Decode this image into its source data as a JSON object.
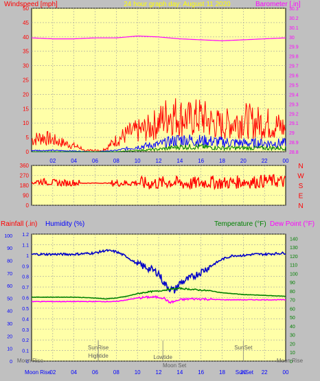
{
  "header": {
    "left_title": "Windspeed [mph]",
    "center_title": "24 hour graph day:  August 11 2020",
    "right_title": "Barometer [.in]"
  },
  "colors": {
    "bg": "#c0c0c0",
    "panel": "#ffffa8",
    "grid": "#a0a0a0",
    "wind": "#ff0000",
    "gust_blue": "#0000ff",
    "gust_green": "#008000",
    "barometer": "#ff00ff",
    "humidity": "#0000c8",
    "temperature": "#008000",
    "dewpoint": "#ff00ff",
    "axis_text_red": "#ff0000",
    "axis_text_blue": "#0000ff",
    "axis_text_green": "#008000",
    "title_yellow": "#ffff00"
  },
  "x_ticks": [
    "02",
    "04",
    "06",
    "08",
    "10",
    "12",
    "14",
    "16",
    "18",
    "20",
    "22",
    "00"
  ],
  "direction_labels": [
    "N",
    "W",
    "S",
    "E",
    "N"
  ],
  "lower_panel_header": {
    "rainfall": "Rainfall (.in)",
    "humidity": "Humidity (%)",
    "temperature": "Temperature (°F)",
    "dewpoint": "Dew Point (°F)"
  },
  "events": {
    "sunrise": "SunRise",
    "hightide": "Hightide",
    "lowtide": "Lowtide",
    "sunset": "SunSet",
    "moonrise_left": "Moon Rise",
    "moonset": "Moon Set",
    "moonrise_right": "Moon Rise",
    "footer_moonrise": "Moon Rise",
    "footer_sunset": "SunSet"
  },
  "chart_data": [
    {
      "type": "line",
      "title": "24 hour graph day:  August 11 2020",
      "ylabel": "Windspeed [mph]",
      "y2label": "Barometer [.in]",
      "ylim": [
        0,
        50
      ],
      "y_ticks": [
        0,
        5,
        10,
        15,
        20,
        25,
        30,
        35,
        40,
        45,
        50
      ],
      "y2lim": [
        28.8,
        30.3
      ],
      "y2_ticks": [
        "28.8",
        "28.9",
        "29",
        "29.1",
        "29.2",
        "29.3",
        "29.4",
        "29.5",
        "29.6",
        "29.7",
        "29.8",
        "29.9",
        "30",
        "30.1",
        "30.2",
        "30.3"
      ],
      "x_hours": [
        0,
        2,
        4,
        6,
        8,
        10,
        12,
        14,
        16,
        18,
        20,
        22,
        24
      ],
      "series": [
        {
          "key": "wind_max",
          "color": "#ff0000",
          "x": [
            0,
            1,
            2,
            3,
            4,
            5,
            6,
            7,
            8,
            9,
            10,
            11,
            12,
            13,
            14,
            15,
            16,
            17,
            18,
            19,
            20,
            21,
            22,
            23,
            24
          ],
          "values": [
            4,
            5,
            4,
            3,
            2,
            1,
            0.5,
            1,
            4,
            6,
            7,
            8,
            10,
            13,
            12,
            11,
            12,
            10,
            9,
            10,
            11,
            10,
            10,
            9,
            8
          ]
        },
        {
          "key": "wind_avg",
          "color": "#0000ff",
          "x": [
            0,
            2,
            4,
            6,
            8,
            10,
            12,
            14,
            16,
            18,
            20,
            22,
            24
          ],
          "values": [
            0.5,
            0.5,
            0.3,
            0,
            0.5,
            2,
            3,
            5,
            4.5,
            4,
            3.5,
            3.5,
            3.5
          ]
        },
        {
          "key": "wind_min",
          "color": "#008000",
          "x": [
            0,
            2,
            4,
            6,
            8,
            10,
            12,
            14,
            16,
            18,
            20,
            22,
            24
          ],
          "values": [
            0,
            0,
            0,
            0,
            0,
            0.5,
            1,
            2,
            2,
            1.5,
            1.5,
            1.5,
            1.5
          ]
        },
        {
          "key": "barometer",
          "color": "#ff00ff",
          "axis": "y2",
          "x": [
            0,
            2,
            4,
            6,
            8,
            10,
            12,
            14,
            16,
            18,
            20,
            22,
            24
          ],
          "values": [
            29.99,
            29.98,
            29.98,
            29.99,
            29.99,
            30.01,
            30.0,
            29.98,
            29.97,
            29.96,
            29.97,
            29.98,
            29.99
          ]
        }
      ]
    },
    {
      "type": "scatter",
      "ylabel": "Wind direction",
      "ylim": [
        0,
        360
      ],
      "y_ticks": [
        0,
        90,
        180,
        270,
        360
      ],
      "series": [
        {
          "key": "direction",
          "color": "#ff0000",
          "x": [
            0,
            1,
            2,
            3,
            4,
            5,
            6,
            7,
            8,
            9,
            10,
            11,
            12,
            13,
            14,
            15,
            16,
            17,
            18,
            19,
            20,
            21,
            22,
            23,
            24
          ],
          "values": [
            210,
            215,
            205,
            200,
            205,
            200,
            200,
            200,
            200,
            200,
            205,
            195,
            200,
            210,
            200,
            195,
            205,
            210,
            200,
            205,
            215,
            210,
            220,
            220,
            210
          ]
        }
      ]
    },
    {
      "type": "line",
      "ylabel": "Humidity (%)",
      "y_ticks_humidity": [
        0,
        10,
        20,
        30,
        40,
        50,
        60,
        70,
        80,
        90,
        100
      ],
      "y_ticks_rain": [
        "0",
        "0.1",
        "0.2",
        "0.3",
        "0.4",
        "0.5",
        "0.6",
        "0.7",
        "0.8",
        "0.9",
        "1",
        "1.1",
        "1.2"
      ],
      "y2label": "Temperature (°F)",
      "y2_ticks": [
        0,
        10,
        20,
        30,
        40,
        50,
        60,
        70,
        80,
        90,
        100,
        110,
        120,
        130,
        140
      ],
      "ylim": [
        0,
        1.2
      ],
      "y2lim": [
        0,
        145
      ],
      "x_hours": [
        0,
        2,
        4,
        6,
        8,
        10,
        12,
        14,
        16,
        18,
        20,
        22,
        24
      ],
      "series": [
        {
          "key": "humidity",
          "color": "#0000c8",
          "x": [
            0,
            2,
            4,
            6,
            7,
            8,
            9,
            10,
            11,
            12,
            12.5,
            13,
            13.5,
            14,
            15,
            16,
            17,
            18,
            19,
            20,
            21,
            22,
            24
          ],
          "values": [
            85,
            85,
            85,
            86,
            88,
            87,
            83,
            77,
            74,
            70,
            62,
            58,
            56,
            62,
            66,
            71,
            76,
            81,
            84,
            84,
            85,
            85,
            86
          ]
        },
        {
          "key": "temperature",
          "color": "#008000",
          "x": [
            0,
            2,
            4,
            6,
            7,
            8,
            9,
            10,
            11,
            12,
            13,
            14,
            15,
            16,
            17,
            18,
            19,
            20,
            22,
            24
          ],
          "values": [
            73,
            73,
            73,
            72,
            71,
            72,
            74,
            77,
            79,
            80,
            82,
            83,
            82,
            81,
            80,
            78,
            77,
            76,
            75,
            74
          ]
        },
        {
          "key": "dewpoint",
          "color": "#ff00ff",
          "x": [
            0,
            2,
            4,
            6,
            8,
            9,
            10,
            11,
            12,
            12.5,
            13,
            13.5,
            14,
            15,
            16,
            18,
            20,
            22,
            24
          ],
          "values": [
            68,
            68,
            68,
            68,
            68,
            70,
            72,
            73,
            73,
            72,
            67,
            68,
            70,
            71,
            71,
            70,
            70,
            70,
            70
          ]
        }
      ]
    }
  ]
}
